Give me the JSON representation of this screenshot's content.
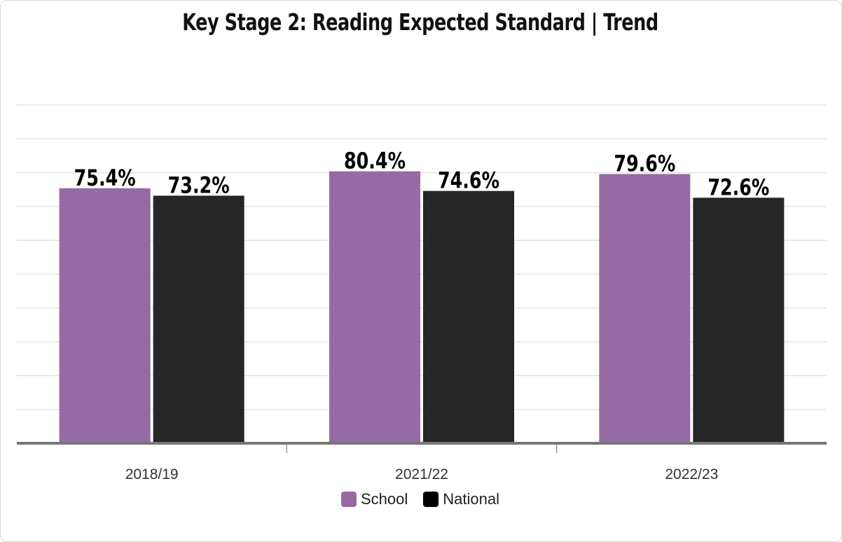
{
  "chart_data": {
    "type": "bar",
    "title": "Key Stage 2: Reading Expected Standard | Trend",
    "categories": [
      "2018/19",
      "2021/22",
      "2022/23"
    ],
    "series": [
      {
        "name": "School",
        "color": "#966ba3",
        "values": [
          75.4,
          80.4,
          79.6
        ],
        "labels": [
          "75.4%",
          "80.4%",
          "79.6%"
        ]
      },
      {
        "name": "National",
        "color": "#262626",
        "values": [
          73.2,
          74.6,
          72.6
        ],
        "labels": [
          "73.2%",
          "74.6%",
          "72.6%"
        ]
      }
    ],
    "ylim": [
      0,
      100
    ],
    "grid": true,
    "legend_position": "bottom-center"
  }
}
